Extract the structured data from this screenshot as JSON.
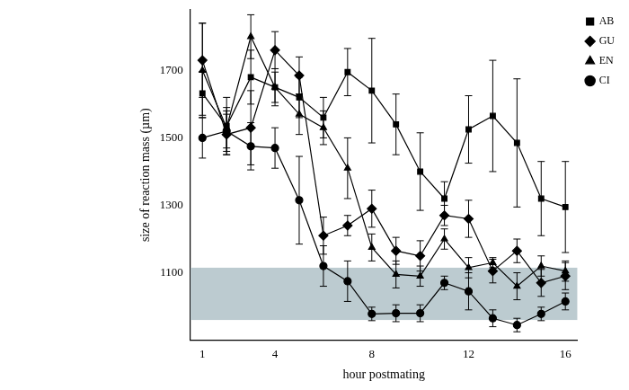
{
  "chart_data": {
    "type": "line",
    "x_label": "hour postmating",
    "y_label": "size of reaction mass (µm)",
    "x": [
      1,
      2,
      3,
      4,
      5,
      6,
      7,
      8,
      9,
      10,
      11,
      12,
      13,
      14,
      15,
      16
    ],
    "xlim": [
      0.5,
      16.5
    ],
    "xticks": [
      1,
      4,
      8,
      12,
      16
    ],
    "ylim": [
      900,
      1880
    ],
    "yticks": [
      1100,
      1300,
      1500,
      1700
    ],
    "grid": false,
    "legend": "right",
    "band": [
      960,
      1115
    ],
    "series": [
      {
        "name": "AB",
        "color": "#000000",
        "marker": "square",
        "values": [
          1632,
          1535,
          1680,
          1650,
          1620,
          1560,
          1695,
          1640,
          1540,
          1400,
          1320,
          1525,
          1565,
          1485,
          1320,
          1295
        ],
        "errors": [
          65,
          85,
          80,
          45,
          60,
          60,
          70,
          155,
          90,
          115,
          50,
          100,
          165,
          190,
          110,
          135
        ]
      },
      {
        "name": "GU",
        "color": "#000000",
        "marker": "diamond",
        "values": [
          1730,
          1510,
          1530,
          1760,
          1685,
          1210,
          1240,
          1290,
          1165,
          1150,
          1270,
          1260,
          1105,
          1165,
          1070,
          1090
        ],
        "errors": [
          110,
          60,
          110,
          55,
          55,
          55,
          30,
          55,
          40,
          45,
          30,
          55,
          35,
          35,
          40,
          40
        ]
      },
      {
        "name": "EN",
        "color": "#000000",
        "marker": "triangle",
        "values": [
          1700,
          1530,
          1800,
          1650,
          1570,
          1530,
          1410,
          1175,
          1095,
          1090,
          1200,
          1115,
          1130,
          1060,
          1120,
          1105
        ],
        "errors": [
          140,
          60,
          65,
          55,
          60,
          50,
          90,
          40,
          40,
          30,
          30,
          30,
          15,
          40,
          30,
          30
        ]
      },
      {
        "name": "CI",
        "color": "#000000",
        "marker": "circle",
        "values": [
          1500,
          1520,
          1475,
          1470,
          1315,
          1120,
          1075,
          978,
          980,
          980,
          1070,
          1045,
          965,
          945,
          978,
          1015
        ],
        "errors": [
          60,
          60,
          70,
          60,
          130,
          60,
          60,
          20,
          25,
          25,
          20,
          55,
          25,
          20,
          20,
          25
        ]
      }
    ]
  }
}
